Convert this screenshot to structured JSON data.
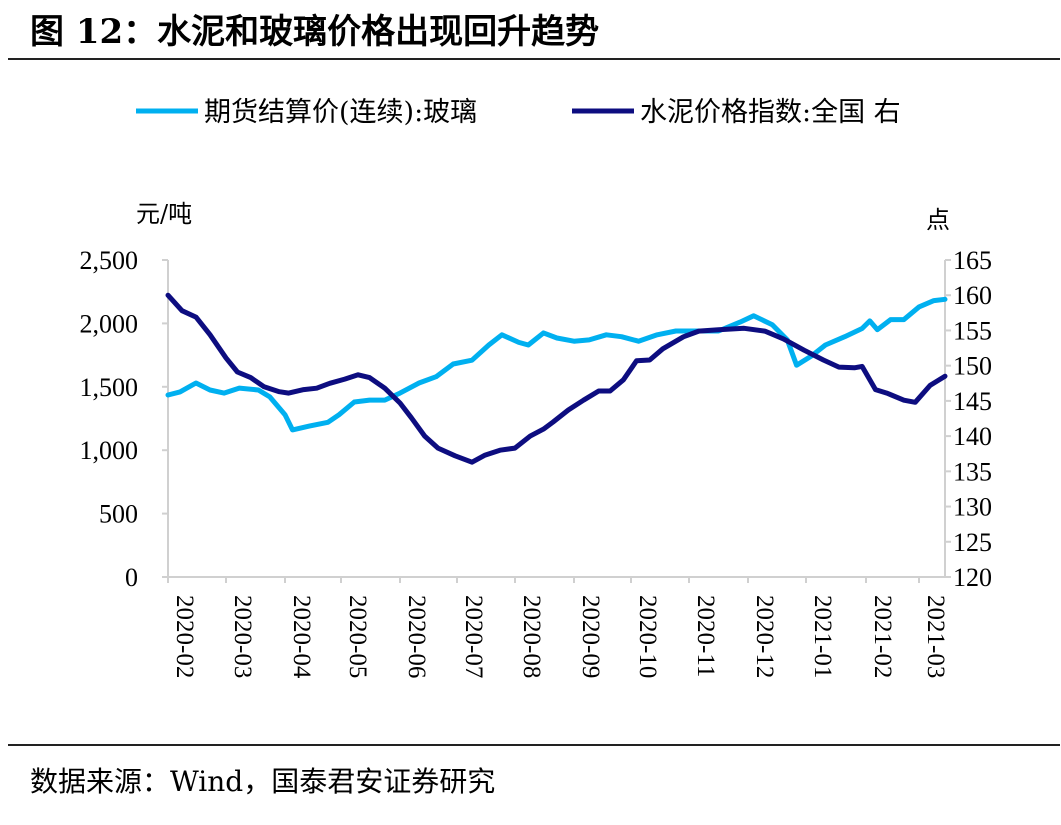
{
  "title": "图 12：水泥和玻璃价格出现回升趋势",
  "source": "数据来源：Wind，国泰君安证券研究",
  "chart_data": {
    "type": "line",
    "title": "",
    "left_unit": "元/吨",
    "right_unit": "点",
    "ylim_left": [
      0,
      2500
    ],
    "yticks_left": [
      "0",
      "500",
      "1,000",
      "1,500",
      "2,000",
      "2,500"
    ],
    "ylim_right": [
      120,
      165
    ],
    "yticks_right": [
      "120",
      "125",
      "130",
      "135",
      "140",
      "145",
      "150",
      "155",
      "160",
      "165"
    ],
    "xticks": [
      "2020-02",
      "2020-03",
      "2020-04",
      "2020-05",
      "2020-06",
      "2020-07",
      "2020-08",
      "2020-09",
      "2020-10",
      "2020-11",
      "2020-12",
      "2021-01",
      "2021-02",
      "2021-03"
    ],
    "grid": false,
    "legend": "top",
    "series": [
      {
        "name": "期货结算价(连续):玻璃",
        "axis": "left",
        "color": "#00b0f0",
        "points": [
          [
            "2020-02-01",
            1435
          ],
          [
            "2020-02-07",
            1460
          ],
          [
            "2020-02-15",
            1530
          ],
          [
            "2020-02-22",
            1475
          ],
          [
            "2020-02-29",
            1450
          ],
          [
            "2020-03-08",
            1490
          ],
          [
            "2020-03-18",
            1475
          ],
          [
            "2020-03-24",
            1420
          ],
          [
            "2020-04-01",
            1280
          ],
          [
            "2020-04-05",
            1160
          ],
          [
            "2020-04-14",
            1190
          ],
          [
            "2020-04-24",
            1220
          ],
          [
            "2020-04-30",
            1280
          ],
          [
            "2020-05-08",
            1380
          ],
          [
            "2020-05-16",
            1395
          ],
          [
            "2020-05-24",
            1395
          ],
          [
            "2020-06-01",
            1450
          ],
          [
            "2020-06-11",
            1530
          ],
          [
            "2020-06-20",
            1580
          ],
          [
            "2020-06-29",
            1680
          ],
          [
            "2020-07-09",
            1710
          ],
          [
            "2020-07-18",
            1830
          ],
          [
            "2020-07-25",
            1910
          ],
          [
            "2020-08-03",
            1850
          ],
          [
            "2020-08-08",
            1830
          ],
          [
            "2020-08-16",
            1925
          ],
          [
            "2020-08-23",
            1885
          ],
          [
            "2020-09-01",
            1860
          ],
          [
            "2020-09-09",
            1870
          ],
          [
            "2020-09-18",
            1910
          ],
          [
            "2020-09-26",
            1895
          ],
          [
            "2020-10-05",
            1860
          ],
          [
            "2020-10-15",
            1910
          ],
          [
            "2020-10-25",
            1940
          ],
          [
            "2020-11-06",
            1940
          ],
          [
            "2020-11-16",
            1940
          ],
          [
            "2020-11-27",
            2010
          ],
          [
            "2020-12-04",
            2060
          ],
          [
            "2020-12-14",
            1990
          ],
          [
            "2020-12-22",
            1870
          ],
          [
            "2020-12-27",
            1670
          ],
          [
            "2021-01-04",
            1745
          ],
          [
            "2021-01-11",
            1830
          ],
          [
            "2021-01-21",
            1895
          ],
          [
            "2021-01-30",
            1960
          ],
          [
            "2021-02-03",
            2020
          ],
          [
            "2021-02-07",
            1950
          ],
          [
            "2021-02-14",
            2030
          ],
          [
            "2021-02-21",
            2030
          ],
          [
            "2021-03-01",
            2130
          ],
          [
            "2021-03-09",
            2180
          ],
          [
            "2021-03-15",
            2190
          ]
        ]
      },
      {
        "name": "水泥价格指数:全国 右",
        "axis": "right",
        "color": "#0d0d80",
        "points": [
          [
            "2020-02-01",
            160.0
          ],
          [
            "2020-02-08",
            157.8
          ],
          [
            "2020-02-15",
            156.9
          ],
          [
            "2020-02-22",
            154.4
          ],
          [
            "2020-03-01",
            151.1
          ],
          [
            "2020-03-07",
            149.1
          ],
          [
            "2020-03-14",
            148.3
          ],
          [
            "2020-03-21",
            147.0
          ],
          [
            "2020-03-29",
            146.3
          ],
          [
            "2020-04-03",
            146.1
          ],
          [
            "2020-04-11",
            146.6
          ],
          [
            "2020-04-18",
            146.8
          ],
          [
            "2020-04-25",
            147.5
          ],
          [
            "2020-05-03",
            148.1
          ],
          [
            "2020-05-10",
            148.7
          ],
          [
            "2020-05-16",
            148.3
          ],
          [
            "2020-05-24",
            146.8
          ],
          [
            "2020-06-01",
            144.7
          ],
          [
            "2020-06-07",
            142.6
          ],
          [
            "2020-06-14",
            140.0
          ],
          [
            "2020-06-21",
            138.3
          ],
          [
            "2020-06-30",
            137.2
          ],
          [
            "2020-07-09",
            136.3
          ],
          [
            "2020-07-16",
            137.3
          ],
          [
            "2020-07-24",
            138.0
          ],
          [
            "2020-08-01",
            138.3
          ],
          [
            "2020-08-09",
            140.0
          ],
          [
            "2020-08-16",
            141.0
          ],
          [
            "2020-08-21",
            142.0
          ],
          [
            "2020-08-29",
            143.7
          ],
          [
            "2020-09-06",
            145.1
          ],
          [
            "2020-09-14",
            146.4
          ],
          [
            "2020-09-20",
            146.4
          ],
          [
            "2020-09-27",
            148.0
          ],
          [
            "2020-10-04",
            150.7
          ],
          [
            "2020-10-11",
            150.8
          ],
          [
            "2020-10-18",
            152.4
          ],
          [
            "2020-10-29",
            154.1
          ],
          [
            "2020-11-06",
            154.9
          ],
          [
            "2020-11-16",
            155.1
          ],
          [
            "2020-11-29",
            155.3
          ],
          [
            "2020-12-10",
            154.9
          ],
          [
            "2020-12-20",
            153.8
          ],
          [
            "2020-12-31",
            152.2
          ],
          [
            "2021-01-10",
            150.8
          ],
          [
            "2021-01-18",
            149.8
          ],
          [
            "2021-01-26",
            149.7
          ],
          [
            "2021-01-30",
            149.9
          ],
          [
            "2021-02-06",
            146.6
          ],
          [
            "2021-02-12",
            146.1
          ],
          [
            "2021-02-21",
            145.1
          ],
          [
            "2021-02-27",
            144.8
          ],
          [
            "2021-03-07",
            147.2
          ],
          [
            "2021-03-15",
            148.5
          ]
        ]
      }
    ]
  }
}
